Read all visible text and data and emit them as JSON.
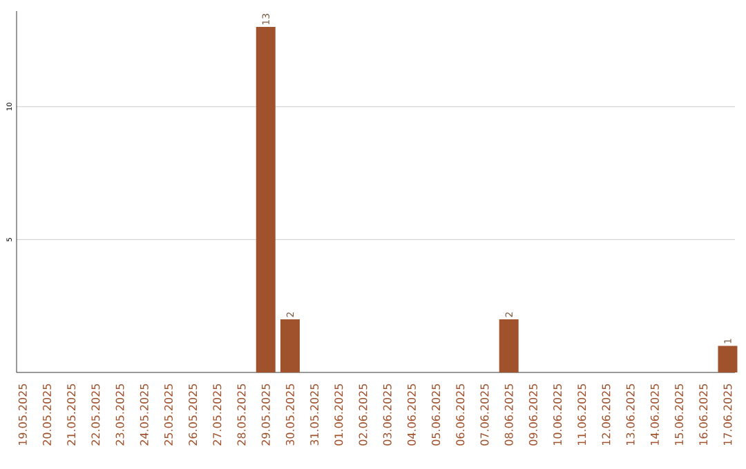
{
  "chart_data": {
    "type": "bar",
    "categories": [
      "19.05.2025",
      "20.05.2025",
      "21.05.2025",
      "22.05.2025",
      "23.05.2025",
      "24.05.2025",
      "25.05.2025",
      "26.05.2025",
      "27.05.2025",
      "28.05.2025",
      "29.05.2025",
      "30.05.2025",
      "31.05.2025",
      "01.06.2025",
      "02.06.2025",
      "03.06.2025",
      "04.06.2025",
      "05.06.2025",
      "06.06.2025",
      "07.06.2025",
      "08.06.2025",
      "09.06.2025",
      "10.06.2025",
      "11.06.2025",
      "12.06.2025",
      "13.06.2025",
      "14.06.2025",
      "15.06.2025",
      "16.06.2025",
      "17.06.2025"
    ],
    "values": [
      0,
      0,
      0,
      0,
      0,
      0,
      0,
      0,
      0,
      0,
      13,
      2,
      0,
      0,
      0,
      0,
      0,
      0,
      0,
      0,
      2,
      0,
      0,
      0,
      0,
      0,
      0,
      0,
      0,
      1
    ],
    "value_labels": [
      null,
      null,
      null,
      null,
      null,
      null,
      null,
      null,
      null,
      null,
      "13",
      "2",
      null,
      null,
      null,
      null,
      null,
      null,
      null,
      null,
      "2",
      null,
      null,
      null,
      null,
      null,
      null,
      null,
      null,
      "1"
    ],
    "color": "#a0522d",
    "ylim": [
      0,
      13.6
    ],
    "yticks": [
      5,
      10
    ],
    "grid": "y"
  }
}
